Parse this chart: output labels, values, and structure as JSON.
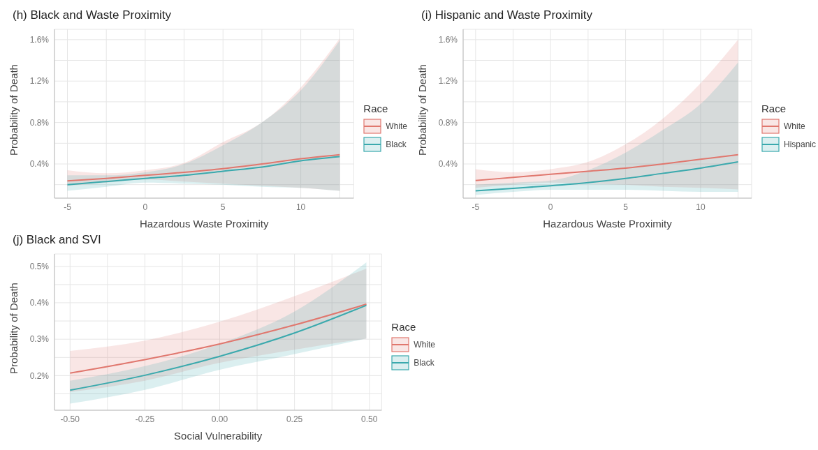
{
  "chart_data": [
    {
      "type": "line",
      "title": "(h) Black and Waste Proximity",
      "xlabel": "Hazardous Waste Proximity",
      "ylabel": "Probability of Death",
      "legend_title": "Race",
      "legend": "right",
      "grid": true,
      "line_style": "solid",
      "x": [
        -5,
        -2.5,
        0,
        2.5,
        5,
        7.5,
        10,
        12.5
      ],
      "xlim": [
        -5.83,
        13.4
      ],
      "xticks": [
        -5,
        {
          "value": -2.5,
          "label": null
        },
        0,
        {
          "value": 2.5,
          "label": null
        },
        5,
        {
          "value": 7.5,
          "label": null
        },
        10,
        {
          "value": 12.5,
          "label": null
        }
      ],
      "ylim": [
        0.07,
        1.7
      ],
      "yticks": [
        {
          "value": 0.2,
          "label": null
        },
        {
          "value": 0.4,
          "label": "0.4%"
        },
        {
          "value": 0.6,
          "label": null
        },
        {
          "value": 0.8,
          "label": "0.8%"
        },
        {
          "value": 1.0,
          "label": null
        },
        {
          "value": 1.2,
          "label": "1.2%"
        },
        {
          "value": 1.4,
          "label": null
        },
        {
          "value": 1.6,
          "label": "1.6%"
        }
      ],
      "series": [
        {
          "name": "White",
          "color": "#e0776e",
          "values": [
            0.236,
            0.26,
            0.29,
            0.32,
            0.355,
            0.4,
            0.45,
            0.49
          ],
          "lower": [
            0.19,
            0.22,
            0.25,
            0.23,
            0.21,
            0.19,
            0.17,
            0.14
          ],
          "upper": [
            0.34,
            0.31,
            0.34,
            0.41,
            0.61,
            0.8,
            1.14,
            1.61
          ]
        },
        {
          "name": "Black",
          "color": "#3aa9ad",
          "values": [
            0.2,
            0.23,
            0.26,
            0.29,
            0.33,
            0.37,
            0.43,
            0.47
          ],
          "lower": [
            0.14,
            0.18,
            0.22,
            0.21,
            0.2,
            0.18,
            0.17,
            0.14
          ],
          "upper": [
            0.29,
            0.29,
            0.32,
            0.4,
            0.58,
            0.8,
            1.11,
            1.59
          ]
        }
      ]
    },
    {
      "type": "line",
      "title": "(i) Hispanic and Waste Proximity",
      "xlabel": "Hazardous Waste Proximity",
      "ylabel": "Probability of Death",
      "legend_title": "Race",
      "legend": "right",
      "grid": true,
      "line_style": "solid",
      "x": [
        -5,
        -2.5,
        0,
        2.5,
        5,
        7.5,
        10,
        12.5
      ],
      "xlim": [
        -5.83,
        13.4
      ],
      "xticks": [
        -5,
        {
          "value": -2.5,
          "label": null
        },
        0,
        {
          "value": 2.5,
          "label": null
        },
        5,
        {
          "value": 7.5,
          "label": null
        },
        10,
        {
          "value": 12.5,
          "label": null
        }
      ],
      "ylim": [
        0.07,
        1.7
      ],
      "yticks": [
        {
          "value": 0.2,
          "label": null
        },
        {
          "value": 0.4,
          "label": "0.4%"
        },
        {
          "value": 0.6,
          "label": null
        },
        {
          "value": 0.8,
          "label": "0.8%"
        },
        {
          "value": 1.0,
          "label": null
        },
        {
          "value": 1.2,
          "label": "1.2%"
        },
        {
          "value": 1.4,
          "label": null
        },
        {
          "value": 1.6,
          "label": "1.6%"
        }
      ],
      "series": [
        {
          "name": "White",
          "color": "#e0776e",
          "values": [
            0.24,
            0.27,
            0.3,
            0.33,
            0.36,
            0.4,
            0.445,
            0.49
          ],
          "lower": [
            0.17,
            0.2,
            0.22,
            0.21,
            0.2,
            0.18,
            0.17,
            0.155
          ],
          "upper": [
            0.35,
            0.32,
            0.35,
            0.42,
            0.59,
            0.84,
            1.18,
            1.6
          ]
        },
        {
          "name": "Hispanic",
          "color": "#3aa9ad",
          "values": [
            0.14,
            0.165,
            0.19,
            0.22,
            0.26,
            0.31,
            0.36,
            0.42
          ],
          "lower": [
            0.1,
            0.13,
            0.15,
            0.15,
            0.15,
            0.14,
            0.13,
            0.13
          ],
          "upper": [
            0.2,
            0.22,
            0.24,
            0.34,
            0.51,
            0.73,
            0.98,
            1.38
          ]
        }
      ]
    },
    {
      "type": "line",
      "title": "(j) Black and SVI",
      "xlabel": "Social Vulnerability",
      "ylabel": "Probability of Death",
      "legend_title": "Race",
      "legend": "right",
      "grid": true,
      "line_style": "solid",
      "x": [
        -0.5,
        -0.25,
        0,
        0.25,
        0.49
      ],
      "xlim": [
        -0.552,
        0.541
      ],
      "xticks": [
        {
          "value": -0.5,
          "label": "-0.50"
        },
        {
          "value": -0.375,
          "label": null
        },
        {
          "value": -0.25,
          "label": "-0.25"
        },
        {
          "value": -0.125,
          "label": null
        },
        {
          "value": 0,
          "label": "0.00"
        },
        {
          "value": 0.125,
          "label": null
        },
        {
          "value": 0.25,
          "label": "0.25"
        },
        {
          "value": 0.375,
          "label": null
        },
        {
          "value": 0.5,
          "label": "0.50"
        }
      ],
      "ylim": [
        0.105,
        0.534
      ],
      "yticks": [
        {
          "value": 0.15,
          "label": null
        },
        {
          "value": 0.2,
          "label": "0.2%"
        },
        {
          "value": 0.25,
          "label": null
        },
        {
          "value": 0.3,
          "label": "0.3%"
        },
        {
          "value": 0.35,
          "label": null
        },
        {
          "value": 0.4,
          "label": "0.4%"
        },
        {
          "value": 0.45,
          "label": null
        },
        {
          "value": 0.5,
          "label": "0.5%"
        }
      ],
      "series": [
        {
          "name": "White",
          "color": "#e0776e",
          "values": [
            0.207,
            0.244,
            0.287,
            0.339,
            0.396
          ],
          "lower": [
            0.155,
            0.186,
            0.235,
            0.271,
            0.302
          ],
          "upper": [
            0.268,
            0.296,
            0.348,
            0.418,
            0.494
          ]
        },
        {
          "name": "Black",
          "color": "#3aa9ad",
          "values": [
            0.16,
            0.201,
            0.253,
            0.317,
            0.393
          ],
          "lower": [
            0.123,
            0.161,
            0.216,
            0.259,
            0.302
          ],
          "upper": [
            0.186,
            0.226,
            0.287,
            0.376,
            0.511
          ]
        }
      ]
    }
  ]
}
